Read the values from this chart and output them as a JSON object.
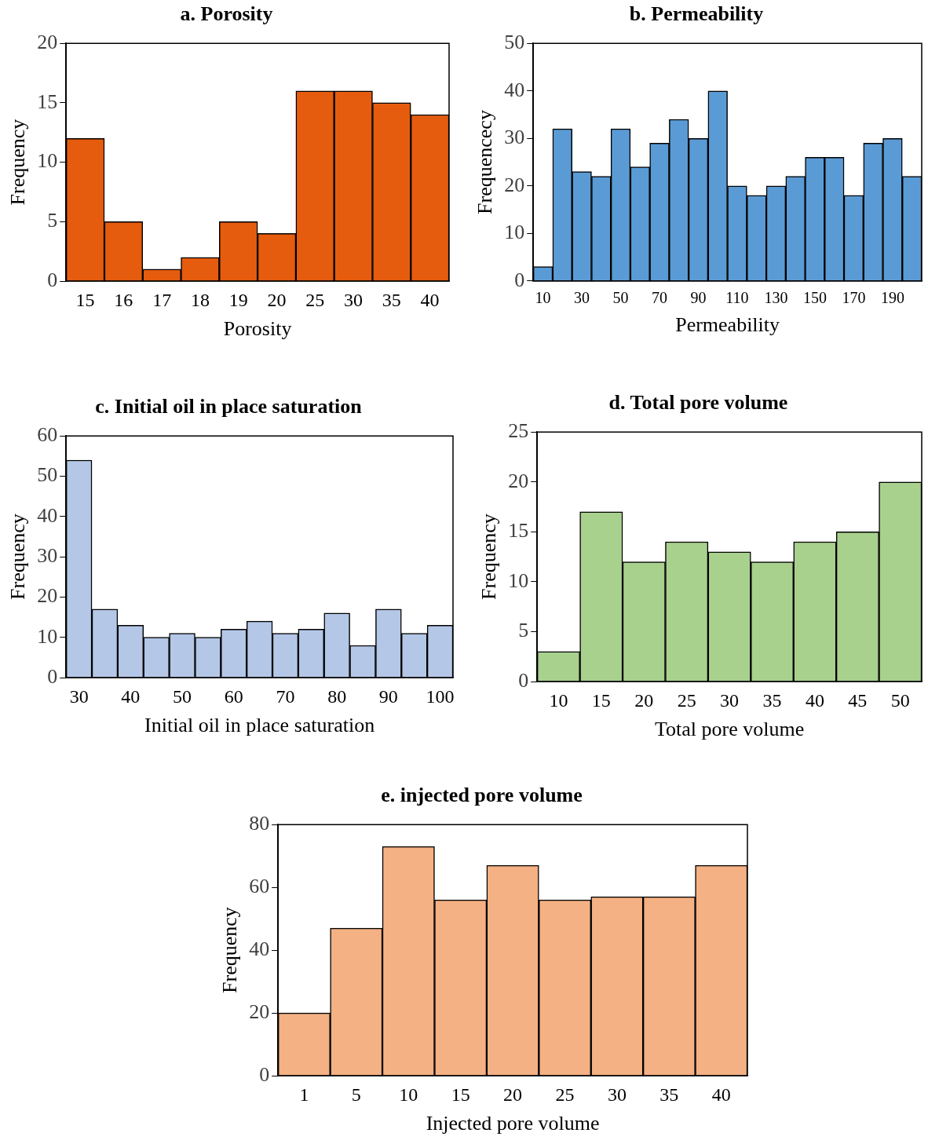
{
  "chart_data": [
    {
      "type": "bar",
      "title": "a. Porosity",
      "xlabel": "Porosity",
      "ylabel": "Frequency",
      "categories": [
        "15",
        "16",
        "17",
        "18",
        "19",
        "20",
        "25",
        "30",
        "35",
        "40"
      ],
      "values": [
        12,
        5,
        1,
        2,
        5,
        4,
        16,
        16,
        15,
        14
      ],
      "color": "#e55c0e",
      "ylim": [
        0,
        20
      ],
      "yticks": [
        0,
        5,
        10,
        15,
        20
      ],
      "grid": false,
      "legend": false
    },
    {
      "type": "bar",
      "title": "b. Permeability",
      "xlabel": "Permeability",
      "ylabel": "Frequencecy",
      "categories": [
        "10",
        null,
        "30",
        null,
        "50",
        null,
        "70",
        null,
        "90",
        null,
        "110",
        null,
        "130",
        null,
        "150",
        null,
        "170",
        null,
        "190",
        null
      ],
      "values": [
        3,
        32,
        23,
        22,
        32,
        24,
        29,
        34,
        30,
        40,
        20,
        18,
        20,
        22,
        26,
        26,
        18,
        29,
        30,
        22
      ],
      "color": "#5b9bd5",
      "ylim": [
        0,
        50
      ],
      "yticks": [
        0,
        10,
        20,
        30,
        40,
        50
      ],
      "grid": false,
      "legend": false
    },
    {
      "type": "bar",
      "title": "c. Initial oil in place saturation",
      "xlabel": "Initial oil in place saturation",
      "ylabel": "Frequency",
      "categories": [
        "30",
        null,
        "40",
        null,
        "50",
        null,
        "60",
        null,
        "70",
        null,
        "80",
        null,
        "90",
        null,
        "100"
      ],
      "values": [
        54,
        17,
        13,
        10,
        11,
        10,
        12,
        14,
        11,
        12,
        16,
        8,
        17,
        11,
        13
      ],
      "color": "#b4c7e7",
      "ylim": [
        0,
        60
      ],
      "yticks": [
        0,
        10,
        20,
        30,
        40,
        50,
        60
      ],
      "grid": false,
      "legend": false
    },
    {
      "type": "bar",
      "title": "d. Total pore volume",
      "xlabel": "Total pore volume",
      "ylabel": "Frequency",
      "categories": [
        "10",
        "15",
        "20",
        "25",
        "30",
        "35",
        "40",
        "45",
        "50"
      ],
      "values": [
        3,
        17,
        12,
        14,
        13,
        12,
        14,
        15,
        20
      ],
      "color": "#a9d18e",
      "ylim": [
        0,
        25
      ],
      "yticks": [
        0,
        5,
        10,
        15,
        20,
        25
      ],
      "grid": false,
      "legend": false
    },
    {
      "type": "bar",
      "title": "e. injected pore volume",
      "xlabel": "Injected pore volume",
      "ylabel": "Frequency",
      "categories": [
        "1",
        "5",
        "10",
        "15",
        "20",
        "25",
        "30",
        "35",
        "40"
      ],
      "values": [
        20,
        47,
        73,
        56,
        67,
        56,
        57,
        57,
        67
      ],
      "color": "#f4b183",
      "ylim": [
        0,
        80
      ],
      "yticks": [
        0,
        20,
        40,
        60,
        80
      ],
      "grid": false,
      "legend": false
    }
  ]
}
